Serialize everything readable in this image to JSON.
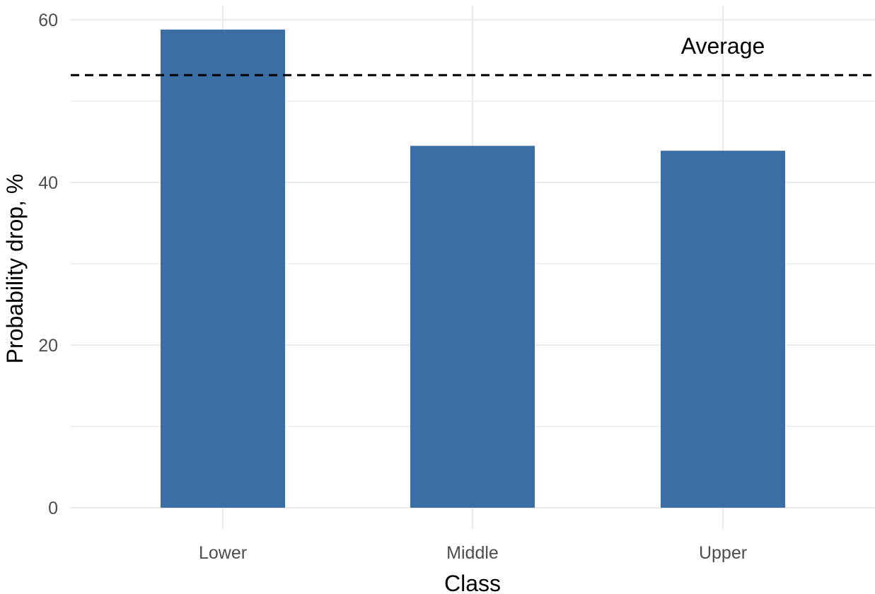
{
  "chart_data": {
    "type": "bar",
    "categories": [
      "Lower",
      "Middle",
      "Upper"
    ],
    "values": [
      58.8,
      44.5,
      43.9
    ],
    "title": "",
    "xlabel": "Class",
    "ylabel": "Probability drop, %",
    "ylim": [
      0,
      60
    ],
    "yticks": [
      0,
      20,
      40,
      60
    ],
    "y_minor_ticks": [
      10,
      30,
      50
    ],
    "grid": true,
    "legend": "none",
    "reference_line": {
      "value": 53.2,
      "style": "dashed",
      "label": "Average"
    },
    "colors": {
      "bar": "#3a6ea5",
      "grid": "#ebebeb",
      "reference_line": "#000000",
      "tick_text": "#4d4d4d"
    }
  }
}
